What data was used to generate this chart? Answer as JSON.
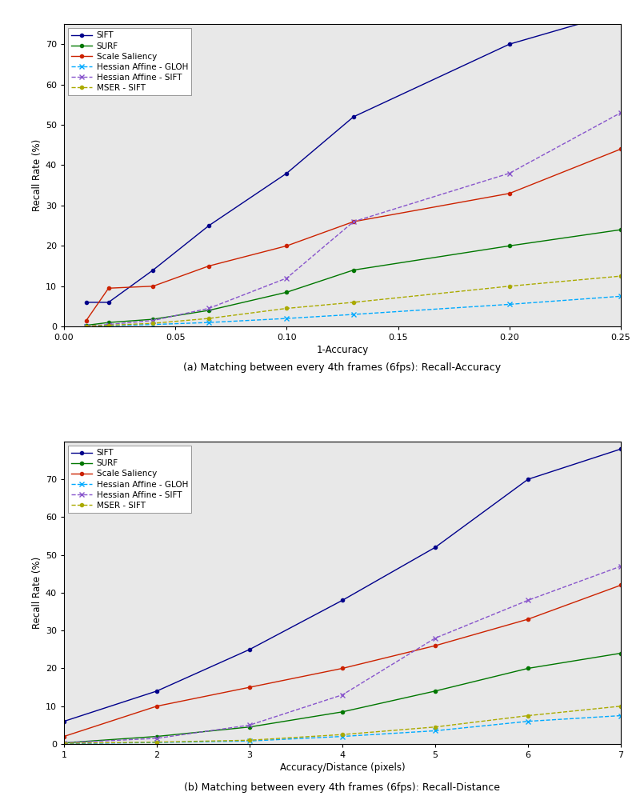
{
  "plot1": {
    "xlabel": "1-Accuracy",
    "ylabel": "Recall Rate (%)",
    "caption": "(a) Matching between every 4th frames (6fps): Recall-Accuracy",
    "xlim": [
      0,
      0.25
    ],
    "ylim": [
      0,
      75
    ],
    "yticks": [
      0,
      10,
      20,
      30,
      40,
      50,
      60,
      70
    ],
    "xticks": [
      0,
      0.05,
      0.1,
      0.15,
      0.2,
      0.25
    ],
    "series": [
      {
        "label": "SIFT",
        "color": "#00008B",
        "linestyle": "-",
        "marker": "o",
        "markersize": 3,
        "x": [
          0.01,
          0.02,
          0.04,
          0.065,
          0.1,
          0.13,
          0.2,
          0.25
        ],
        "y": [
          6,
          6,
          14,
          25,
          38,
          52,
          70,
          78
        ]
      },
      {
        "label": "SURF",
        "color": "#007700",
        "linestyle": "-",
        "marker": "o",
        "markersize": 3,
        "x": [
          0.01,
          0.02,
          0.04,
          0.065,
          0.1,
          0.13,
          0.2,
          0.25
        ],
        "y": [
          0.3,
          1.0,
          1.8,
          4.0,
          8.5,
          14,
          20,
          24
        ]
      },
      {
        "label": "Scale Saliency",
        "color": "#CC2200",
        "linestyle": "-",
        "marker": "o",
        "markersize": 3,
        "x": [
          0.01,
          0.02,
          0.04,
          0.065,
          0.1,
          0.13,
          0.2,
          0.25
        ],
        "y": [
          1.5,
          9.5,
          10,
          15,
          20,
          26,
          33,
          44
        ]
      },
      {
        "label": "Hessian Affine - GLOH",
        "color": "#00AAFF",
        "linestyle": "--",
        "marker": "x",
        "markersize": 4,
        "x": [
          0.01,
          0.02,
          0.04,
          0.065,
          0.1,
          0.13,
          0.2,
          0.25
        ],
        "y": [
          0.05,
          0.2,
          0.5,
          1.0,
          2.0,
          3.0,
          5.5,
          7.5
        ]
      },
      {
        "label": "Hessian Affine - SIFT",
        "color": "#8855CC",
        "linestyle": "--",
        "marker": "x",
        "markersize": 4,
        "x": [
          0.01,
          0.02,
          0.04,
          0.065,
          0.1,
          0.13,
          0.2,
          0.25
        ],
        "y": [
          0.1,
          0.5,
          1.5,
          4.5,
          12,
          26,
          38,
          53
        ]
      },
      {
        "label": "MSER - SIFT",
        "color": "#AAAA00",
        "linestyle": "--",
        "marker": "o",
        "markersize": 3,
        "x": [
          0.01,
          0.02,
          0.04,
          0.065,
          0.1,
          0.13,
          0.2,
          0.25
        ],
        "y": [
          0.1,
          0.3,
          0.8,
          2.0,
          4.5,
          6.0,
          10,
          12.5
        ]
      }
    ]
  },
  "plot2": {
    "xlabel": "Accuracy/Distance (pixels)",
    "ylabel": "Recall Rate (%)",
    "caption": "(b) Matching between every 4th frames (6fps): Recall-Distance",
    "xlim": [
      1,
      7
    ],
    "ylim": [
      0,
      80
    ],
    "yticks": [
      0,
      10,
      20,
      30,
      40,
      50,
      60,
      70
    ],
    "xticks": [
      1,
      2,
      3,
      4,
      5,
      6,
      7
    ],
    "series": [
      {
        "label": "SIFT",
        "color": "#00008B",
        "linestyle": "-",
        "marker": "o",
        "markersize": 3,
        "x": [
          1,
          2,
          3,
          4,
          5,
          6,
          7
        ],
        "y": [
          6,
          14,
          25,
          38,
          52,
          70,
          78
        ]
      },
      {
        "label": "SURF",
        "color": "#007700",
        "linestyle": "-",
        "marker": "o",
        "markersize": 3,
        "x": [
          1,
          2,
          3,
          4,
          5,
          6,
          7
        ],
        "y": [
          0.3,
          2.0,
          4.5,
          8.5,
          14,
          20,
          24
        ]
      },
      {
        "label": "Scale Saliency",
        "color": "#CC2200",
        "linestyle": "-",
        "marker": "o",
        "markersize": 3,
        "x": [
          1,
          2,
          3,
          4,
          5,
          6,
          7
        ],
        "y": [
          2,
          10,
          15,
          20,
          26,
          33,
          42
        ]
      },
      {
        "label": "Hessian Affine - GLOH",
        "color": "#00AAFF",
        "linestyle": "--",
        "marker": "x",
        "markersize": 4,
        "x": [
          1,
          2,
          3,
          4,
          5,
          6,
          7
        ],
        "y": [
          0.1,
          0.4,
          0.8,
          2.0,
          3.5,
          6.0,
          7.5
        ]
      },
      {
        "label": "Hessian Affine - SIFT",
        "color": "#8855CC",
        "linestyle": "--",
        "marker": "x",
        "markersize": 4,
        "x": [
          1,
          2,
          3,
          4,
          5,
          6,
          7
        ],
        "y": [
          0.3,
          1.5,
          5,
          13,
          28,
          38,
          47
        ]
      },
      {
        "label": "MSER - SIFT",
        "color": "#AAAA00",
        "linestyle": "--",
        "marker": "o",
        "markersize": 3,
        "x": [
          1,
          2,
          3,
          4,
          5,
          6,
          7
        ],
        "y": [
          0.2,
          0.5,
          1.0,
          2.5,
          4.5,
          7.5,
          10
        ]
      }
    ]
  },
  "plot_bg_color": "#e8e8e8",
  "fig_bg_color": "#ffffff",
  "legend_fontsize": 7.5,
  "axis_label_fontsize": 8.5,
  "tick_fontsize": 8,
  "caption_fontsize": 9
}
